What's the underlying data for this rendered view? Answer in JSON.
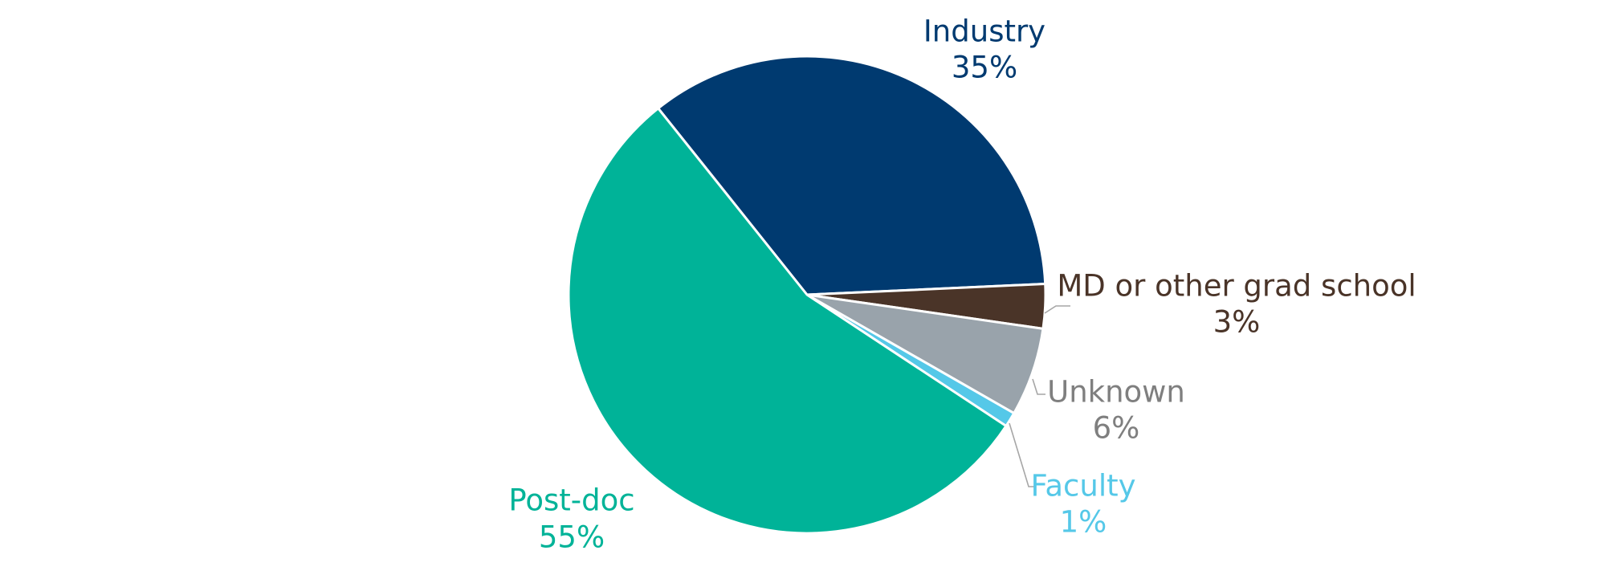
{
  "chart_data": {
    "type": "pie",
    "title": "",
    "slices": [
      {
        "label": "Industry",
        "value": 35,
        "pct_label": "35%",
        "color": "#003A70",
        "label_color": "#003A70"
      },
      {
        "label": "MD or other grad school",
        "value": 3,
        "pct_label": "3%",
        "color": "#4A3428",
        "label_color": "#4A3428"
      },
      {
        "label": "Unknown",
        "value": 6,
        "pct_label": "6%",
        "color": "#99A3AB",
        "label_color": "#7F7F7F"
      },
      {
        "label": "Faculty",
        "value": 1,
        "pct_label": "1%",
        "color": "#55C8E8",
        "label_color": "#55C8E8"
      },
      {
        "label": "Post-doc",
        "value": 55,
        "pct_label": "55%",
        "color": "#00B398",
        "label_color": "#00B398"
      }
    ],
    "start_position": "top-left, clockwise",
    "legend": "none",
    "label_style": "outside labels with leader lines for small slices"
  }
}
